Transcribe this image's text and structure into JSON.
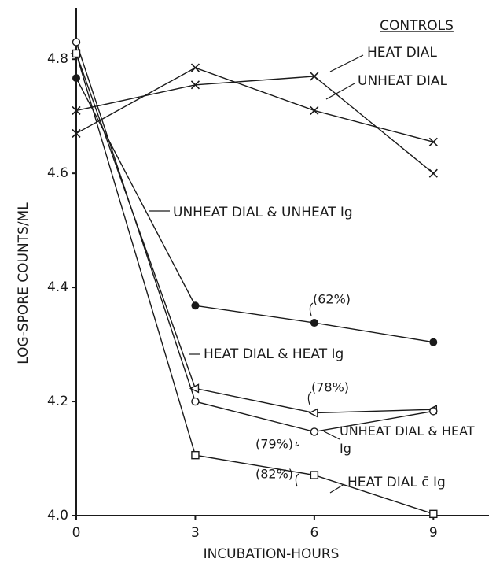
{
  "chart_data": {
    "type": "line",
    "xlabel": "INCUBATION-HOURS",
    "ylabel": "LOG-SPORE COUNTS/ML",
    "legend_title": "CONTROLS",
    "x": [
      0,
      3,
      6,
      9
    ],
    "xlim": [
      0,
      10.4
    ],
    "ylim": [
      4.0,
      4.89
    ],
    "xticks": [
      0,
      3,
      6,
      9
    ],
    "yticks": [
      {
        "value": 4.0,
        "label": "4.0"
      },
      4.2,
      4.4,
      4.6,
      {
        "value": 4.8,
        "label": "4.8"
      }
    ],
    "series": [
      {
        "name": "UNHEAT DIAL",
        "color": "#1a1a1a",
        "marker": "x",
        "values": [
          4.67,
          4.785,
          4.71,
          4.655
        ]
      },
      {
        "name": "HEAT DIAL",
        "color": "#1a1a1a",
        "marker": "x",
        "values": [
          4.71,
          4.755,
          4.77,
          4.6
        ]
      },
      {
        "name": "UNHEAT DIAL & UNHEAT Ig",
        "color": "#1a1a1a",
        "marker": "filled-circle",
        "annotation": "(62%)",
        "values": [
          4.767,
          4.368,
          4.338,
          4.304
        ]
      },
      {
        "name": "HEAT DIAL & HEAT Ig",
        "color": "#1a1a1a",
        "marker": "triangle",
        "annotation": "(78%)",
        "values": [
          4.81,
          4.223,
          4.18,
          4.186
        ]
      },
      {
        "name": "UNHEAT DIAL & HEAT Ig",
        "color": "#1a1a1a",
        "marker": "circle",
        "annotation": "(79%)",
        "values": [
          4.83,
          4.2,
          4.147,
          4.183
        ]
      },
      {
        "name": "HEAT DIAL c̄ Ig",
        "color": "#1a1a1a",
        "marker": "square",
        "annotation": "(82%)",
        "values": [
          4.81,
          4.106,
          4.071,
          4.003
        ]
      }
    ]
  }
}
